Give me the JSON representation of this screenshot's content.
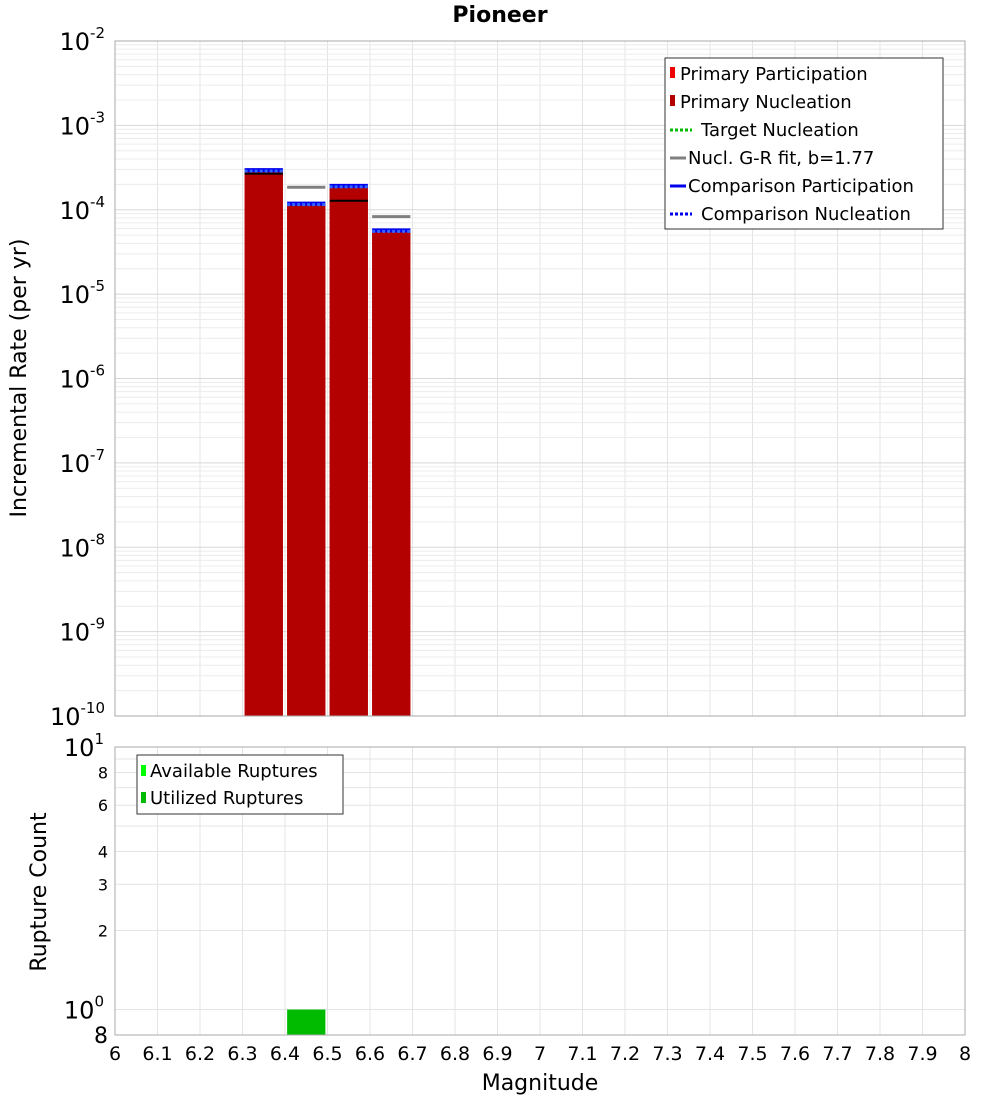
{
  "chart_data": [
    {
      "type": "bar",
      "title": "Pioneer",
      "ylabel": "Incremental Rate (per yr)",
      "xlabel": "",
      "yscale": "log",
      "ylim_exp": [
        -10,
        -2
      ],
      "xlim": [
        6.0,
        8.0
      ],
      "y_tick_base": "10",
      "y_tick_exponents": [
        "-10",
        "-9",
        "-8",
        "-7",
        "-6",
        "-5",
        "-4",
        "-3",
        "-2"
      ],
      "bar_width": 0.09,
      "series": [
        {
          "name": "Primary Participation",
          "color": "#ee0000",
          "x": [
            6.35,
            6.45,
            6.55,
            6.65
          ],
          "values": [
            0.000285,
            0.000115,
            0.000185,
            5.45e-05
          ]
        },
        {
          "name": "Primary Nucleation",
          "color": "#b30000",
          "x": [
            6.35,
            6.45,
            6.55,
            6.65
          ],
          "values": [
            0.000268,
            0.000112,
            0.000184,
            5.4e-05
          ]
        },
        {
          "name": "Target Nucleation",
          "color": "#00bb00",
          "style": "dotted",
          "x": [],
          "values": []
        },
        {
          "name": "Nucl. G-R fit, b=1.77",
          "color": "#808080",
          "x": [
            6.45,
            6.65
          ],
          "values": [
            0.000185,
            8.3e-05
          ]
        },
        {
          "name": "Comparison Participation",
          "color": "#0000ee",
          "x": [
            6.35,
            6.45,
            6.55,
            6.65
          ],
          "values": [
            0.000295,
            0.000118,
            0.000192,
            5.7e-05
          ]
        },
        {
          "name": "Comparison Nucleation",
          "color": "#0000ee",
          "style": "dotted",
          "x": [
            6.35,
            6.45,
            6.55,
            6.65
          ],
          "values": [
            0.000295,
            0.000118,
            0.000192,
            5.7e-05
          ]
        }
      ],
      "extra_lines": {
        "color": "#000000",
        "x": [
          6.35,
          6.55
        ],
        "values": [
          0.000268,
          0.000128
        ]
      },
      "legend_position": "top-right",
      "grid": true
    },
    {
      "type": "bar",
      "title": "",
      "ylabel": "Rupture Count",
      "xlabel": "Magnitude",
      "yscale": "log",
      "ylim": [
        0.8,
        10
      ],
      "x_ticks": [
        "6",
        "6.1",
        "6.2",
        "6.3",
        "6.4",
        "6.5",
        "6.6",
        "6.7",
        "6.8",
        "6.9",
        "7",
        "7.1",
        "7.2",
        "7.3",
        "7.4",
        "7.5",
        "7.6",
        "7.7",
        "7.8",
        "7.9",
        "8"
      ],
      "y_ticks_labels": [
        {
          "value": 8,
          "label": "8"
        },
        {
          "value": 6,
          "label": "6"
        },
        {
          "value": 4,
          "label": "4"
        },
        {
          "value": 3,
          "label": "3"
        },
        {
          "value": 2,
          "label": "2"
        }
      ],
      "y_power_ticks": [
        {
          "value": 10,
          "base": "10",
          "exp": "1"
        },
        {
          "value": 1,
          "base": "10",
          "exp": "0"
        }
      ],
      "y_bottom_label": "8",
      "bar_width": 0.09,
      "series": [
        {
          "name": "Available Ruptures",
          "color": "#00ff00",
          "x": [
            6.45
          ],
          "values": [
            1
          ]
        },
        {
          "name": "Utilized Ruptures",
          "color": "#00bb00",
          "x": [
            6.45
          ],
          "values": [
            1
          ]
        }
      ],
      "legend_position": "top-left",
      "grid": true
    }
  ]
}
